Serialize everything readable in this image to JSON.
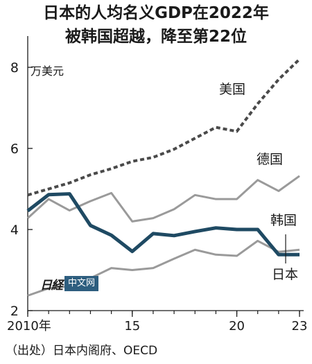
{
  "title_line1": "日本的人均名义GDP在2022年",
  "title_line2": "被韩国超越，降至第22位",
  "source": "（出处）日本内阁府、OECD",
  "watermark": {
    "mark": "日経",
    "text": "中文网"
  },
  "colors": {
    "japan": "#1f4a63",
    "usa": "#4a4a4a",
    "gray": "#9a9a9a",
    "axis": "#1a1a1a"
  },
  "chart_data": {
    "type": "line",
    "unit_label": "万美元",
    "x": [
      2010,
      2011,
      2012,
      2013,
      2014,
      2015,
      2016,
      2017,
      2018,
      2019,
      2020,
      2021,
      2022,
      2023
    ],
    "x_ticks": [
      {
        "value": 2010,
        "label": "2010年"
      },
      {
        "value": 2015,
        "label": "15"
      },
      {
        "value": 2020,
        "label": "20"
      },
      {
        "value": 2023,
        "label": "23"
      }
    ],
    "y_ticks": [
      2,
      4,
      6,
      8
    ],
    "xlim": [
      2010,
      2023
    ],
    "ylim": [
      2,
      8.6
    ],
    "series": [
      {
        "name": "美国",
        "style": "dashed",
        "values": [
          4.85,
          5.0,
          5.15,
          5.35,
          5.5,
          5.68,
          5.78,
          5.98,
          6.25,
          6.52,
          6.42,
          7.1,
          7.7,
          8.2
        ]
      },
      {
        "name": "德国",
        "style": "gray",
        "values": [
          4.28,
          4.75,
          4.47,
          4.7,
          4.9,
          4.2,
          4.28,
          4.5,
          4.85,
          4.75,
          4.75,
          5.22,
          4.95,
          5.32
        ]
      },
      {
        "name": "日本",
        "style": "bold",
        "values": [
          4.46,
          4.86,
          4.88,
          4.1,
          3.86,
          3.46,
          3.9,
          3.85,
          3.95,
          4.04,
          4.0,
          4.0,
          3.38,
          3.38
        ]
      },
      {
        "name": "韩国",
        "style": "gray",
        "values": [
          2.37,
          2.55,
          2.6,
          2.8,
          3.05,
          3.0,
          3.05,
          3.28,
          3.5,
          3.38,
          3.35,
          3.72,
          3.45,
          3.5
        ]
      }
    ],
    "grid": false
  }
}
